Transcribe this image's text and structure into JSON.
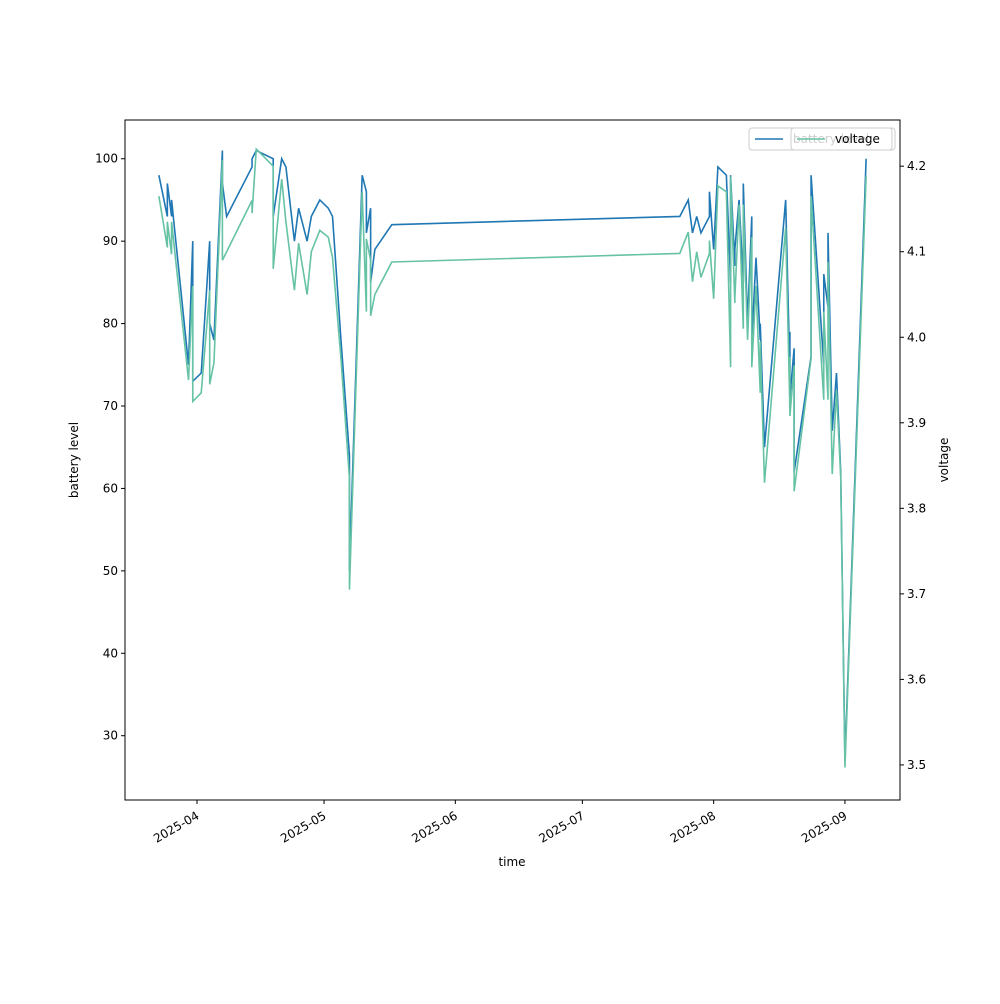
{
  "chart_data": {
    "type": "line",
    "x_label": "time",
    "y_label": "battery level",
    "y2_label": "voltage",
    "x": [
      "2025-03-23",
      "2025-03-25",
      "2025-03-25",
      "2025-03-26",
      "2025-03-26",
      "2025-03-30",
      "2025-03-31",
      "2025-03-31",
      "2025-04-02",
      "2025-04-04",
      "2025-04-04",
      "2025-04-05",
      "2025-04-07",
      "2025-04-07",
      "2025-04-08",
      "2025-04-14",
      "2025-04-14",
      "2025-04-15",
      "2025-04-19",
      "2025-04-19",
      "2025-04-21",
      "2025-04-22",
      "2025-04-24",
      "2025-04-25",
      "2025-04-27",
      "2025-04-28",
      "2025-04-30",
      "2025-05-02",
      "2025-05-03",
      "2025-05-05",
      "2025-05-07",
      "2025-05-07",
      "2025-05-10",
      "2025-05-11",
      "2025-05-11",
      "2025-05-12",
      "2025-05-12",
      "2025-05-13",
      "2025-05-17",
      "2025-07-24",
      "2025-07-26",
      "2025-07-27",
      "2025-07-28",
      "2025-07-29",
      "2025-07-31",
      "2025-07-31",
      "2025-08-01",
      "2025-08-02",
      "2025-08-04",
      "2025-08-05",
      "2025-08-05",
      "2025-08-06",
      "2025-08-06",
      "2025-08-07",
      "2025-08-08",
      "2025-08-08",
      "2025-08-09",
      "2025-08-10",
      "2025-08-10",
      "2025-08-11",
      "2025-08-12",
      "2025-08-12",
      "2025-08-13",
      "2025-08-18",
      "2025-08-19",
      "2025-08-19",
      "2025-08-19",
      "2025-08-20",
      "2025-08-20",
      "2025-08-24",
      "2025-08-24",
      "2025-08-27",
      "2025-08-27",
      "2025-08-28",
      "2025-08-28",
      "2025-08-29",
      "2025-08-30",
      "2025-08-31",
      "2025-09-01",
      "2025-09-06"
    ],
    "series": [
      {
        "name": "battery level",
        "color": "#1f77b4",
        "axis": "y",
        "values": [
          98,
          93,
          97,
          93,
          95,
          75,
          90,
          73,
          74,
          90,
          80,
          78,
          101,
          97,
          93,
          99,
          100,
          101,
          100,
          93,
          100,
          99,
          90,
          94,
          90,
          93,
          95,
          94,
          93,
          78,
          64,
          50,
          98,
          96,
          91,
          94,
          85,
          89,
          92,
          93,
          95,
          91,
          93,
          91,
          93,
          96,
          89,
          99,
          98,
          85,
          98,
          87,
          89,
          95,
          85,
          97,
          80,
          93,
          78,
          88,
          78,
          80,
          65,
          95,
          74,
          79,
          71,
          77,
          62,
          76,
          98,
          75,
          86,
          82,
          91,
          67,
          74,
          62,
          27,
          100
        ]
      },
      {
        "name": "voltage",
        "color": "#66c2a5",
        "axis": "y2",
        "values": [
          4.165,
          4.105,
          4.135,
          4.097,
          4.135,
          3.95,
          4.06,
          3.925,
          3.935,
          4.055,
          3.945,
          3.97,
          4.207,
          4.09,
          4.1,
          4.16,
          4.145,
          4.22,
          4.2,
          4.08,
          4.185,
          4.135,
          4.055,
          4.11,
          4.05,
          4.1,
          4.125,
          4.117,
          4.093,
          3.975,
          3.835,
          3.705,
          4.17,
          4.03,
          4.115,
          4.09,
          4.025,
          4.05,
          4.088,
          4.098,
          4.123,
          4.065,
          4.1,
          4.07,
          4.098,
          4.113,
          4.045,
          4.177,
          4.17,
          3.965,
          4.188,
          4.04,
          4.045,
          4.155,
          4.01,
          4.155,
          3.997,
          4.117,
          3.965,
          4.06,
          3.935,
          3.995,
          3.83,
          4.128,
          3.915,
          3.977,
          3.908,
          3.967,
          3.82,
          3.975,
          4.165,
          3.927,
          4.03,
          3.927,
          4.088,
          3.84,
          3.938,
          3.837,
          3.497,
          4.188
        ]
      }
    ],
    "xlim": [
      "2025-03-15",
      "2025-09-14"
    ],
    "xticks": [
      {
        "value": "2025-04-01",
        "label": "2025-04"
      },
      {
        "value": "2025-05-01",
        "label": "2025-05"
      },
      {
        "value": "2025-06-01",
        "label": "2025-06"
      },
      {
        "value": "2025-07-01",
        "label": "2025-07"
      },
      {
        "value": "2025-08-01",
        "label": "2025-08"
      },
      {
        "value": "2025-09-01",
        "label": "2025-09"
      }
    ],
    "ylim": [
      22.2,
      104.7
    ],
    "yticks": [
      30,
      40,
      50,
      60,
      70,
      80,
      90,
      100
    ],
    "y2lim": [
      3.459,
      4.254
    ],
    "y2ticks": [
      3.5,
      3.6,
      3.7,
      3.8,
      3.9,
      {
        "value": 4,
        "label": "4.0"
      },
      4.1,
      4.2
    ],
    "legend": "upper right"
  }
}
